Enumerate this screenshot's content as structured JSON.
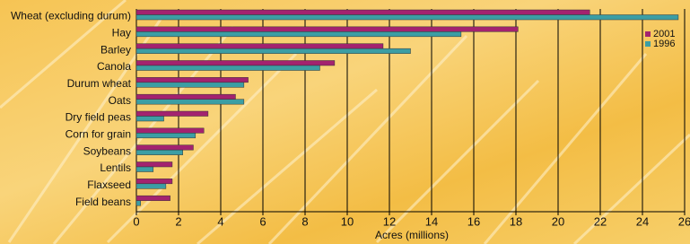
{
  "chart_data": {
    "type": "hbar",
    "xlabel": "Acres (millions)",
    "categories": [
      "Wheat (excluding durum)",
      "Hay",
      "Barley",
      "Canola",
      "Durum wheat",
      "Oats",
      "Dry field peas",
      "Corn for grain",
      "Soybeans",
      "Lentils",
      "Flaxseed",
      "Field beans"
    ],
    "series": [
      {
        "name": "2001",
        "color": "#a3236f",
        "values": [
          21.5,
          18.1,
          11.7,
          9.4,
          5.3,
          4.7,
          3.4,
          3.2,
          2.7,
          1.7,
          1.7,
          1.6
        ]
      },
      {
        "name": "1996",
        "color": "#3c9ea4",
        "values": [
          25.7,
          15.4,
          13.0,
          8.7,
          5.1,
          5.1,
          1.3,
          2.8,
          2.2,
          0.8,
          1.4,
          0.2
        ]
      }
    ],
    "xlim": [
      0,
      26
    ],
    "xticks": [
      0,
      2,
      4,
      6,
      8,
      10,
      12,
      14,
      16,
      18,
      20,
      22,
      24,
      26
    ],
    "grid": true,
    "legend": "top-right"
  }
}
